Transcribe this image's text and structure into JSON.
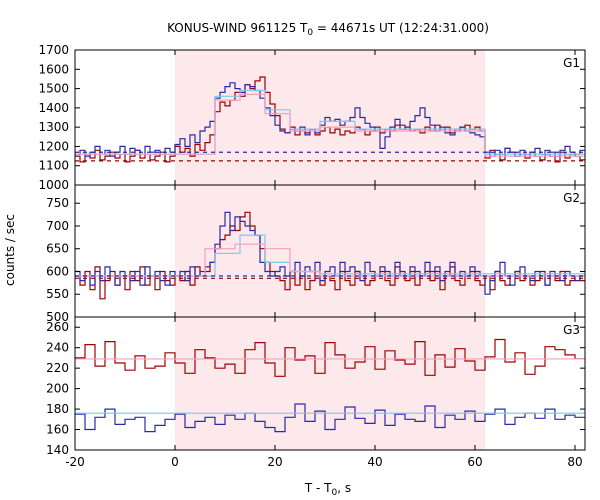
{
  "title": {
    "prefix": "KONUS-WIND 961125 T",
    "sub": "0",
    "suffix": " = 44671s UT (12:24:31.000)"
  },
  "ylabel": "counts / sec",
  "xlabel": {
    "prefix": "T - T",
    "sub": "0",
    "suffix": ", s"
  },
  "colors": {
    "red": "#a00000",
    "blue": "#2a2aa8",
    "light_blue": "#7ec8ee",
    "pink": "#f2a0c0",
    "shade": "#fde8ec"
  },
  "chart_data": [
    {
      "type": "line",
      "panel": "G1",
      "xlim": [
        -20,
        82
      ],
      "ylim": [
        1000,
        1700
      ],
      "yticks": [
        1000,
        1100,
        1200,
        1300,
        1400,
        1500,
        1600,
        1700
      ],
      "xticks": [
        -20,
        0,
        20,
        40,
        60,
        80
      ],
      "shaded_interval": [
        0,
        62
      ],
      "step": 1.0,
      "series": [
        {
          "color": "red",
          "x_start": -20,
          "step": 1.0,
          "values": [
            1150,
            1120,
            1160,
            1140,
            1180,
            1130,
            1150,
            1170,
            1140,
            1160,
            1120,
            1150,
            1180,
            1140,
            1160,
            1130,
            1150,
            1170,
            1120,
            1150,
            1200,
            1170,
            1190,
            1150,
            1210,
            1180,
            1220,
            1260,
            1380,
            1430,
            1410,
            1440,
            1480,
            1460,
            1520,
            1500,
            1540,
            1560,
            1480,
            1420,
            1360,
            1290,
            1270,
            1300,
            1260,
            1280,
            1270,
            1290,
            1260,
            1280,
            1300,
            1270,
            1290,
            1260,
            1280,
            1270,
            1300,
            1290,
            1260,
            1280,
            1300,
            1270,
            1290,
            1280,
            1310,
            1290,
            1300,
            1280,
            1290,
            1270,
            1300,
            1280,
            1310,
            1290,
            1300,
            1270,
            1280,
            1300,
            1310,
            1290,
            1300,
            1280,
            1140,
            1180,
            1160,
            1130,
            1190,
            1170,
            1150,
            1160,
            1140,
            1170,
            1150,
            1130,
            1160,
            1150,
            1120,
            1170,
            1140,
            1160,
            1150,
            1130
          ]
        },
        {
          "color": "blue",
          "x_start": -20,
          "step": 1.0,
          "values": [
            1160,
            1180,
            1150,
            1170,
            1200,
            1160,
            1180,
            1150,
            1170,
            1200,
            1160,
            1190,
            1180,
            1160,
            1200,
            1170,
            1180,
            1160,
            1190,
            1170,
            1210,
            1240,
            1200,
            1260,
            1220,
            1280,
            1300,
            1330,
            1450,
            1480,
            1510,
            1530,
            1500,
            1480,
            1520,
            1510,
            1490,
            1450,
            1400,
            1360,
            1310,
            1280,
            1270,
            1290,
            1280,
            1300,
            1260,
            1290,
            1270,
            1310,
            1350,
            1330,
            1340,
            1310,
            1330,
            1350,
            1400,
            1350,
            1320,
            1300,
            1280,
            1190,
            1250,
            1300,
            1340,
            1310,
            1290,
            1330,
            1360,
            1400,
            1350,
            1310,
            1280,
            1300,
            1270,
            1260,
            1290,
            1300,
            1280,
            1270,
            1260,
            1250,
            1170,
            1150,
            1180,
            1160,
            1190,
            1170,
            1150,
            1180,
            1160,
            1170,
            1190,
            1160,
            1180,
            1170,
            1150,
            1180,
            1200,
            1170,
            1160,
            1180
          ]
        },
        {
          "color": "light_blue",
          "type": "step-segments",
          "segments": [
            [
              -20,
              8,
              1160
            ],
            [
              8,
              13,
              1460
            ],
            [
              13,
              18,
              1490
            ],
            [
              18,
              23,
              1390
            ],
            [
              23,
              29,
              1290
            ],
            [
              29,
              36,
              1330
            ],
            [
              36,
              62,
              1290
            ],
            [
              62,
              82,
              1160
            ]
          ]
        },
        {
          "color": "pink",
          "type": "step-segments",
          "segments": [
            [
              -20,
              8,
              1160
            ],
            [
              8,
              13,
              1440
            ],
            [
              13,
              18,
              1470
            ],
            [
              18,
              23,
              1370
            ],
            [
              23,
              29,
              1280
            ],
            [
              29,
              36,
              1300
            ],
            [
              36,
              62,
              1280
            ],
            [
              62,
              82,
              1150
            ]
          ]
        },
        {
          "color": "blue",
          "type": "dashed",
          "y": 1170
        },
        {
          "color": "red",
          "type": "dashed",
          "y": 1125
        }
      ],
      "panel_label": "G1"
    },
    {
      "type": "line",
      "panel": "G2",
      "xlim": [
        -20,
        82
      ],
      "ylim": [
        500,
        790
      ],
      "yticks": [
        500,
        550,
        600,
        650,
        700,
        750
      ],
      "xticks": [
        -20,
        0,
        20,
        40,
        60,
        80
      ],
      "shaded_interval": [
        0,
        62
      ],
      "series": [
        {
          "color": "red",
          "x_start": -20,
          "step": 1.0,
          "values": [
            590,
            570,
            600,
            560,
            610,
            540,
            580,
            600,
            570,
            590,
            560,
            600,
            580,
            610,
            570,
            590,
            560,
            600,
            580,
            570,
            590,
            580,
            600,
            570,
            610,
            590,
            600,
            620,
            650,
            670,
            680,
            700,
            690,
            720,
            730,
            700,
            680,
            650,
            620,
            600,
            590,
            580,
            560,
            600,
            570,
            590,
            560,
            580,
            600,
            570,
            590,
            580,
            560,
            600,
            580,
            570,
            600,
            590,
            570,
            580,
            590,
            600,
            580,
            570,
            610,
            590,
            580,
            600,
            570,
            590,
            600,
            580,
            600,
            560,
            590,
            610,
            580,
            570,
            590,
            600,
            580,
            570,
            590,
            560,
            600,
            580,
            570,
            590,
            600,
            580,
            590,
            570,
            580,
            600,
            570,
            590,
            580,
            600,
            570,
            580,
            590,
            580
          ]
        },
        {
          "color": "blue",
          "x_start": -20,
          "step": 1.0,
          "values": [
            600,
            580,
            590,
            570,
            600,
            580,
            610,
            590,
            570,
            600,
            590,
            580,
            600,
            570,
            610,
            590,
            600,
            580,
            570,
            600,
            590,
            600,
            580,
            610,
            590,
            600,
            610,
            620,
            660,
            700,
            730,
            690,
            720,
            710,
            700,
            690,
            680,
            620,
            600,
            590,
            600,
            610,
            590,
            600,
            620,
            590,
            610,
            600,
            620,
            580,
            600,
            610,
            590,
            620,
            600,
            610,
            600,
            580,
            620,
            600,
            590,
            610,
            600,
            590,
            620,
            600,
            590,
            610,
            600,
            590,
            620,
            600,
            610,
            580,
            600,
            620,
            590,
            600,
            590,
            610,
            600,
            590,
            550,
            580,
            600,
            620,
            590,
            570,
            600,
            610,
            590,
            580,
            600,
            590,
            570,
            600,
            590,
            580,
            600,
            590,
            580,
            590
          ]
        },
        {
          "color": "light_blue",
          "type": "step-segments",
          "segments": [
            [
              -20,
              8,
              590
            ],
            [
              8,
              13,
              640
            ],
            [
              13,
              18,
              680
            ],
            [
              18,
              23,
              620
            ],
            [
              23,
              29,
              600
            ],
            [
              29,
              82,
              595
            ]
          ]
        },
        {
          "color": "pink",
          "type": "step-segments",
          "segments": [
            [
              -20,
              6,
              590
            ],
            [
              6,
              12,
              650
            ],
            [
              12,
              18,
              660
            ],
            [
              18,
              23,
              650
            ],
            [
              23,
              29,
              600
            ],
            [
              29,
              82,
              590
            ]
          ]
        },
        {
          "color": "blue",
          "type": "dashed",
          "y": 590
        },
        {
          "color": "red",
          "type": "dashed",
          "y": 585
        }
      ],
      "panel_label": "G2"
    },
    {
      "type": "line",
      "panel": "G3",
      "xlim": [
        -20,
        82
      ],
      "ylim": [
        140,
        270
      ],
      "yticks": [
        140,
        160,
        180,
        200,
        220,
        240,
        260
      ],
      "xticks": [
        -20,
        0,
        20,
        40,
        60,
        80
      ],
      "shaded_interval": [
        0,
        62
      ],
      "series": [
        {
          "color": "red",
          "x_start": -20,
          "step": 2.0,
          "values": [
            230,
            243,
            222,
            246,
            225,
            218,
            232,
            220,
            222,
            235,
            225,
            215,
            238,
            230,
            220,
            224,
            215,
            238,
            245,
            225,
            212,
            240,
            228,
            232,
            215,
            245,
            233,
            220,
            226,
            241,
            219,
            237,
            228,
            224,
            246,
            213,
            233,
            221,
            239,
            227,
            218,
            231,
            248,
            226,
            235,
            214,
            222,
            241,
            238,
            233,
            229
          ]
        },
        {
          "color": "blue",
          "x_start": -20,
          "step": 2.0,
          "values": [
            175,
            160,
            172,
            180,
            165,
            170,
            172,
            158,
            164,
            170,
            175,
            162,
            168,
            172,
            165,
            174,
            170,
            176,
            168,
            162,
            158,
            172,
            185,
            168,
            178,
            160,
            170,
            182,
            171,
            166,
            179,
            164,
            175,
            170,
            168,
            183,
            162,
            174,
            170,
            178,
            168,
            175,
            180,
            165,
            172,
            176,
            171,
            180,
            170,
            174,
            172
          ]
        },
        {
          "color": "light_blue",
          "type": "hline",
          "y": 176
        },
        {
          "color": "pink",
          "type": "hline",
          "y": 229
        }
      ],
      "panel_label": "G3"
    }
  ]
}
